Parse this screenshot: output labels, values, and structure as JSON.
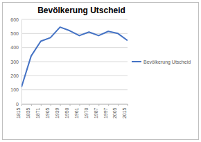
{
  "chart_data": {
    "type": "line",
    "title": "Bevölkerung Utscheid",
    "categories": [
      "1815",
      "1835",
      "1871",
      "1905",
      "1939",
      "1950",
      "1961",
      "1970",
      "1987",
      "1997",
      "2005",
      "2015"
    ],
    "series": [
      {
        "name": "Bevölkerung Utscheid",
        "color": "#4472c4",
        "values": [
          120,
          340,
          445,
          470,
          545,
          520,
          485,
          510,
          485,
          515,
          500,
          450
        ]
      }
    ],
    "ylim": [
      0,
      600
    ],
    "yticks": [
      0,
      100,
      200,
      300,
      400,
      500,
      600
    ],
    "grid": true,
    "legend": "right"
  }
}
